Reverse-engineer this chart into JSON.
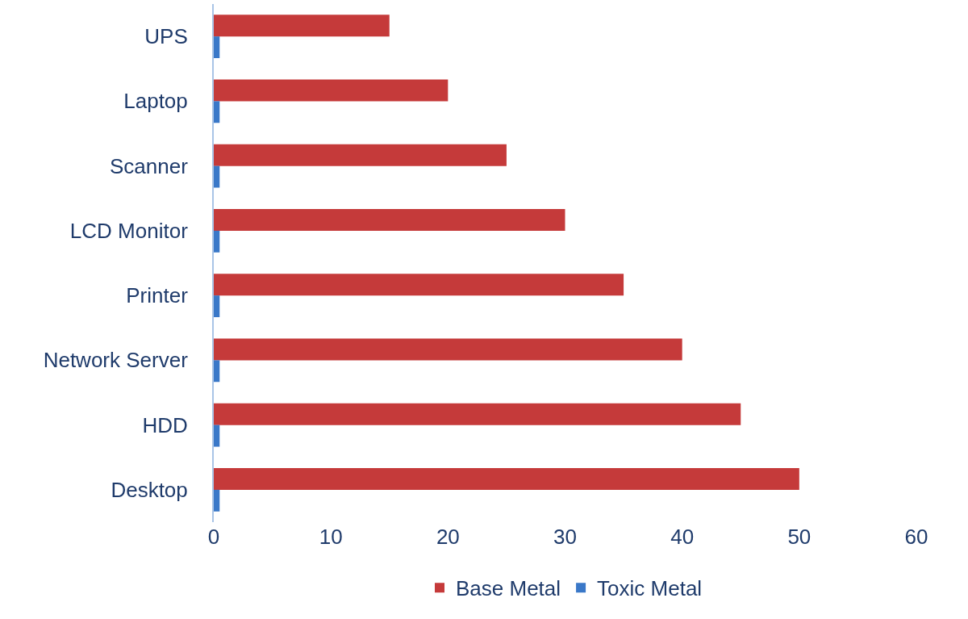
{
  "chart_data": {
    "type": "bar",
    "orientation": "horizontal",
    "categories": [
      "UPS",
      "Laptop",
      "Scanner",
      "LCD Monitor",
      "Printer",
      "Network Server",
      "HDD",
      "Desktop"
    ],
    "series": [
      {
        "name": "Base Metal",
        "color": "#c53a3a",
        "values": [
          15,
          20,
          25,
          30,
          35,
          40,
          45,
          50
        ]
      },
      {
        "name": "Toxic Metal",
        "color": "#3a78c8",
        "values": [
          0.5,
          0.5,
          0.5,
          0.5,
          0.5,
          0.5,
          0.5,
          0.5
        ]
      }
    ],
    "xlim": [
      0,
      60
    ],
    "xticks": [
      0,
      10,
      20,
      30,
      40,
      50,
      60
    ],
    "grid": false,
    "legend": "bottom"
  }
}
